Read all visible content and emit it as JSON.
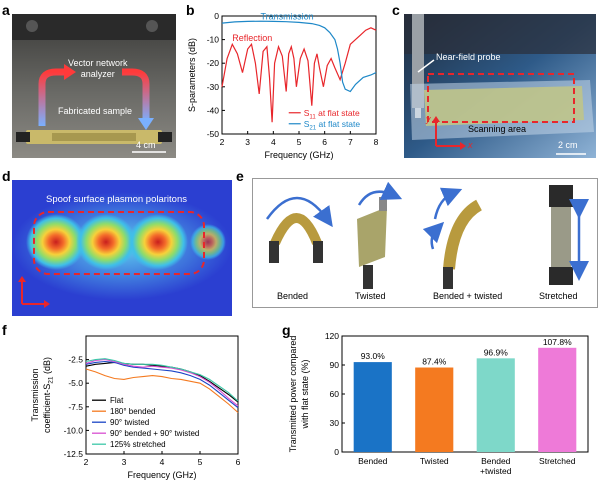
{
  "panels": {
    "a": {
      "letter": "a",
      "vna_label_line1": "Vector network",
      "vna_label_line2": "analyzer",
      "sample_label": "Fabricated sample",
      "scale_label": "4 cm"
    },
    "b": {
      "letter": "b"
    },
    "c": {
      "letter": "c",
      "probe_label": "Near-field probe",
      "area_label": "Scanning area",
      "scale_label": "2 cm",
      "axis_x": "x",
      "axis_y": "y"
    },
    "d": {
      "letter": "d",
      "label": "Spoof surface plasmon polaritons"
    },
    "e": {
      "letter": "e",
      "captions": [
        "Bended",
        "Twisted",
        "Bended + twisted",
        "Stretched"
      ]
    },
    "f": {
      "letter": "f"
    },
    "g": {
      "letter": "g"
    }
  },
  "colors": {
    "red": "#e8262b",
    "blue": "#1e88c8",
    "bar_blue": "#1a73c6",
    "bar_orange": "#f47a20",
    "bar_teal": "#7ed8c9",
    "bar_pink": "#ee7ad8"
  },
  "chart_data": [
    {
      "id": "b",
      "type": "line",
      "title": "",
      "xlabel": "Frequency (GHz)",
      "ylabel": "S-parameters (dB)",
      "xlim": [
        2,
        8
      ],
      "ylim": [
        -50,
        0
      ],
      "xticks": [
        2,
        3,
        4,
        5,
        6,
        7,
        8
      ],
      "yticks": [
        0,
        -10,
        -20,
        -30,
        -40,
        -50
      ],
      "annotations": [
        "Transmission",
        "Reflection"
      ],
      "legend_position": "bottom-right",
      "series": [
        {
          "name": "S11 at flat state",
          "legend_main": "S",
          "legend_sub": "11",
          "legend_rest": " at flat state",
          "color": "#e8262b",
          "x": [
            2.0,
            2.2,
            2.4,
            2.6,
            2.8,
            3.0,
            3.15,
            3.3,
            3.45,
            3.6,
            3.75,
            3.85,
            3.95,
            4.05,
            4.2,
            4.35,
            4.5,
            4.6,
            4.7,
            4.8,
            4.9,
            5.05,
            5.2,
            5.35,
            5.5,
            5.6,
            5.7,
            5.8,
            5.95,
            6.1,
            6.25,
            6.4,
            6.6,
            6.8,
            7.0,
            7.2,
            7.4,
            7.6,
            7.8,
            8.0
          ],
          "y": [
            -30,
            -18,
            -12,
            -16,
            -24,
            -14,
            -12,
            -20,
            -33,
            -15,
            -13,
            -26,
            -45,
            -20,
            -13,
            -17,
            -32,
            -16,
            -13,
            -18,
            -30,
            -18,
            -14,
            -19,
            -38,
            -20,
            -16,
            -22,
            -30,
            -21,
            -18,
            -22,
            -27,
            -20,
            -12,
            -10,
            -8,
            -6,
            -5,
            -6
          ]
        },
        {
          "name": "S21 at flat state",
          "legend_main": "S",
          "legend_sub": "21",
          "legend_rest": " at flat state",
          "color": "#1e88c8",
          "x": [
            2.0,
            2.5,
            3.0,
            3.5,
            4.0,
            4.5,
            5.0,
            5.5,
            5.8,
            6.0,
            6.2,
            6.4,
            6.5,
            6.6,
            6.7,
            6.8,
            7.0,
            7.2,
            7.5,
            7.8,
            8.0
          ],
          "y": [
            -3,
            -2.5,
            -2.3,
            -2.2,
            -2.3,
            -2.4,
            -2.7,
            -3.2,
            -4,
            -5,
            -7,
            -10,
            -14,
            -20,
            -28,
            -31,
            -32,
            -29,
            -26,
            -25,
            -24
          ]
        }
      ]
    },
    {
      "id": "f",
      "type": "line",
      "title": "",
      "xlabel": "Frequency (GHz)",
      "ylabel": "Transmission coefficient-S21 (dB)",
      "ylabel_line1": "Transmission",
      "ylabel_line2_main": "coefficient-S",
      "ylabel_line2_sub": "21",
      "ylabel_line2_rest": " (dB)",
      "xlim": [
        2,
        6
      ],
      "ylim": [
        -12.5,
        0
      ],
      "xticks": [
        2,
        3,
        4,
        5,
        6
      ],
      "yticks": [
        -2.5,
        -5.0,
        -7.5,
        -10.0,
        -12.5
      ],
      "legend_position": "bottom-left",
      "series": [
        {
          "name": "Flat",
          "color": "#000000",
          "x": [
            2.0,
            2.25,
            2.5,
            2.75,
            3.0,
            3.25,
            3.5,
            3.75,
            4.0,
            4.25,
            4.5,
            4.75,
            5.0,
            5.25,
            5.5,
            5.75,
            6.0
          ],
          "y": [
            -3.2,
            -3.0,
            -2.9,
            -2.8,
            -2.9,
            -3.0,
            -3.0,
            -3.1,
            -3.2,
            -3.3,
            -3.5,
            -3.8,
            -4.2,
            -4.8,
            -5.5,
            -6.2,
            -7.0
          ]
        },
        {
          "name": "180° bended",
          "color": "#f47a20",
          "x": [
            2.0,
            2.25,
            2.5,
            2.75,
            3.0,
            3.25,
            3.5,
            3.75,
            4.0,
            4.25,
            4.5,
            4.75,
            5.0,
            5.25,
            5.5,
            5.75,
            6.0
          ],
          "y": [
            -3.5,
            -3.8,
            -4.2,
            -4.5,
            -4.6,
            -4.4,
            -4.3,
            -4.2,
            -4.3,
            -4.5,
            -4.6,
            -4.8,
            -5.0,
            -5.6,
            -6.4,
            -7.2,
            -8.1
          ]
        },
        {
          "name": "90° twisted",
          "color": "#1a44c6",
          "x": [
            2.0,
            2.25,
            2.5,
            2.75,
            3.0,
            3.25,
            3.5,
            3.75,
            4.0,
            4.25,
            4.5,
            4.75,
            5.0,
            5.25,
            5.5,
            5.75,
            6.0
          ],
          "y": [
            -3.0,
            -2.8,
            -2.7,
            -2.8,
            -3.1,
            -3.3,
            -3.4,
            -3.5,
            -3.6,
            -3.7,
            -3.9,
            -4.2,
            -4.6,
            -5.2,
            -6.0,
            -6.8,
            -7.6
          ]
        },
        {
          "name": "90° bended + 90° twisted",
          "color": "#d84fd0",
          "x": [
            2.0,
            2.25,
            2.5,
            2.75,
            3.0,
            3.25,
            3.5,
            3.75,
            4.0,
            4.25,
            4.5,
            4.75,
            5.0,
            5.25,
            5.5,
            5.75,
            6.0
          ],
          "y": [
            -2.9,
            -2.6,
            -2.5,
            -2.7,
            -3.0,
            -3.2,
            -3.3,
            -3.2,
            -3.3,
            -3.4,
            -3.6,
            -3.9,
            -4.3,
            -4.9,
            -5.7,
            -6.6,
            -7.4
          ]
        },
        {
          "name": "125% stretched",
          "color": "#3cc8a8",
          "x": [
            2.0,
            2.25,
            2.5,
            2.75,
            3.0,
            3.25,
            3.5,
            3.75,
            4.0,
            4.25,
            4.5,
            4.75,
            5.0,
            5.25,
            5.5,
            5.75,
            6.0
          ],
          "y": [
            -2.7,
            -2.5,
            -2.4,
            -2.6,
            -2.9,
            -3.0,
            -3.0,
            -3.0,
            -3.1,
            -3.3,
            -3.5,
            -3.8,
            -4.1,
            -4.6,
            -5.3,
            -6.0,
            -6.9
          ]
        }
      ]
    },
    {
      "id": "g",
      "type": "bar",
      "title": "",
      "xlabel": "",
      "ylabel": "Transmitted power compared with flat state (%)",
      "ylabel_line1": "Transmitted power compared",
      "ylabel_line2": "with flat state (%)",
      "ylim": [
        0,
        120
      ],
      "yticks": [
        0,
        30,
        60,
        90,
        120
      ],
      "categories": [
        "Bended",
        "Twisted",
        "Bended +twisted",
        "Stretched"
      ],
      "category_lines": [
        [
          "Bended"
        ],
        [
          "Twisted"
        ],
        [
          "Bended",
          "+twisted"
        ],
        [
          "Stretched"
        ]
      ],
      "values": [
        93.0,
        87.4,
        96.9,
        107.8
      ],
      "value_labels": [
        "93.0%",
        "87.4%",
        "96.9%",
        "107.8%"
      ],
      "colors": [
        "#1a73c6",
        "#f47a20",
        "#7ed8c9",
        "#ee7ad8"
      ]
    }
  ]
}
